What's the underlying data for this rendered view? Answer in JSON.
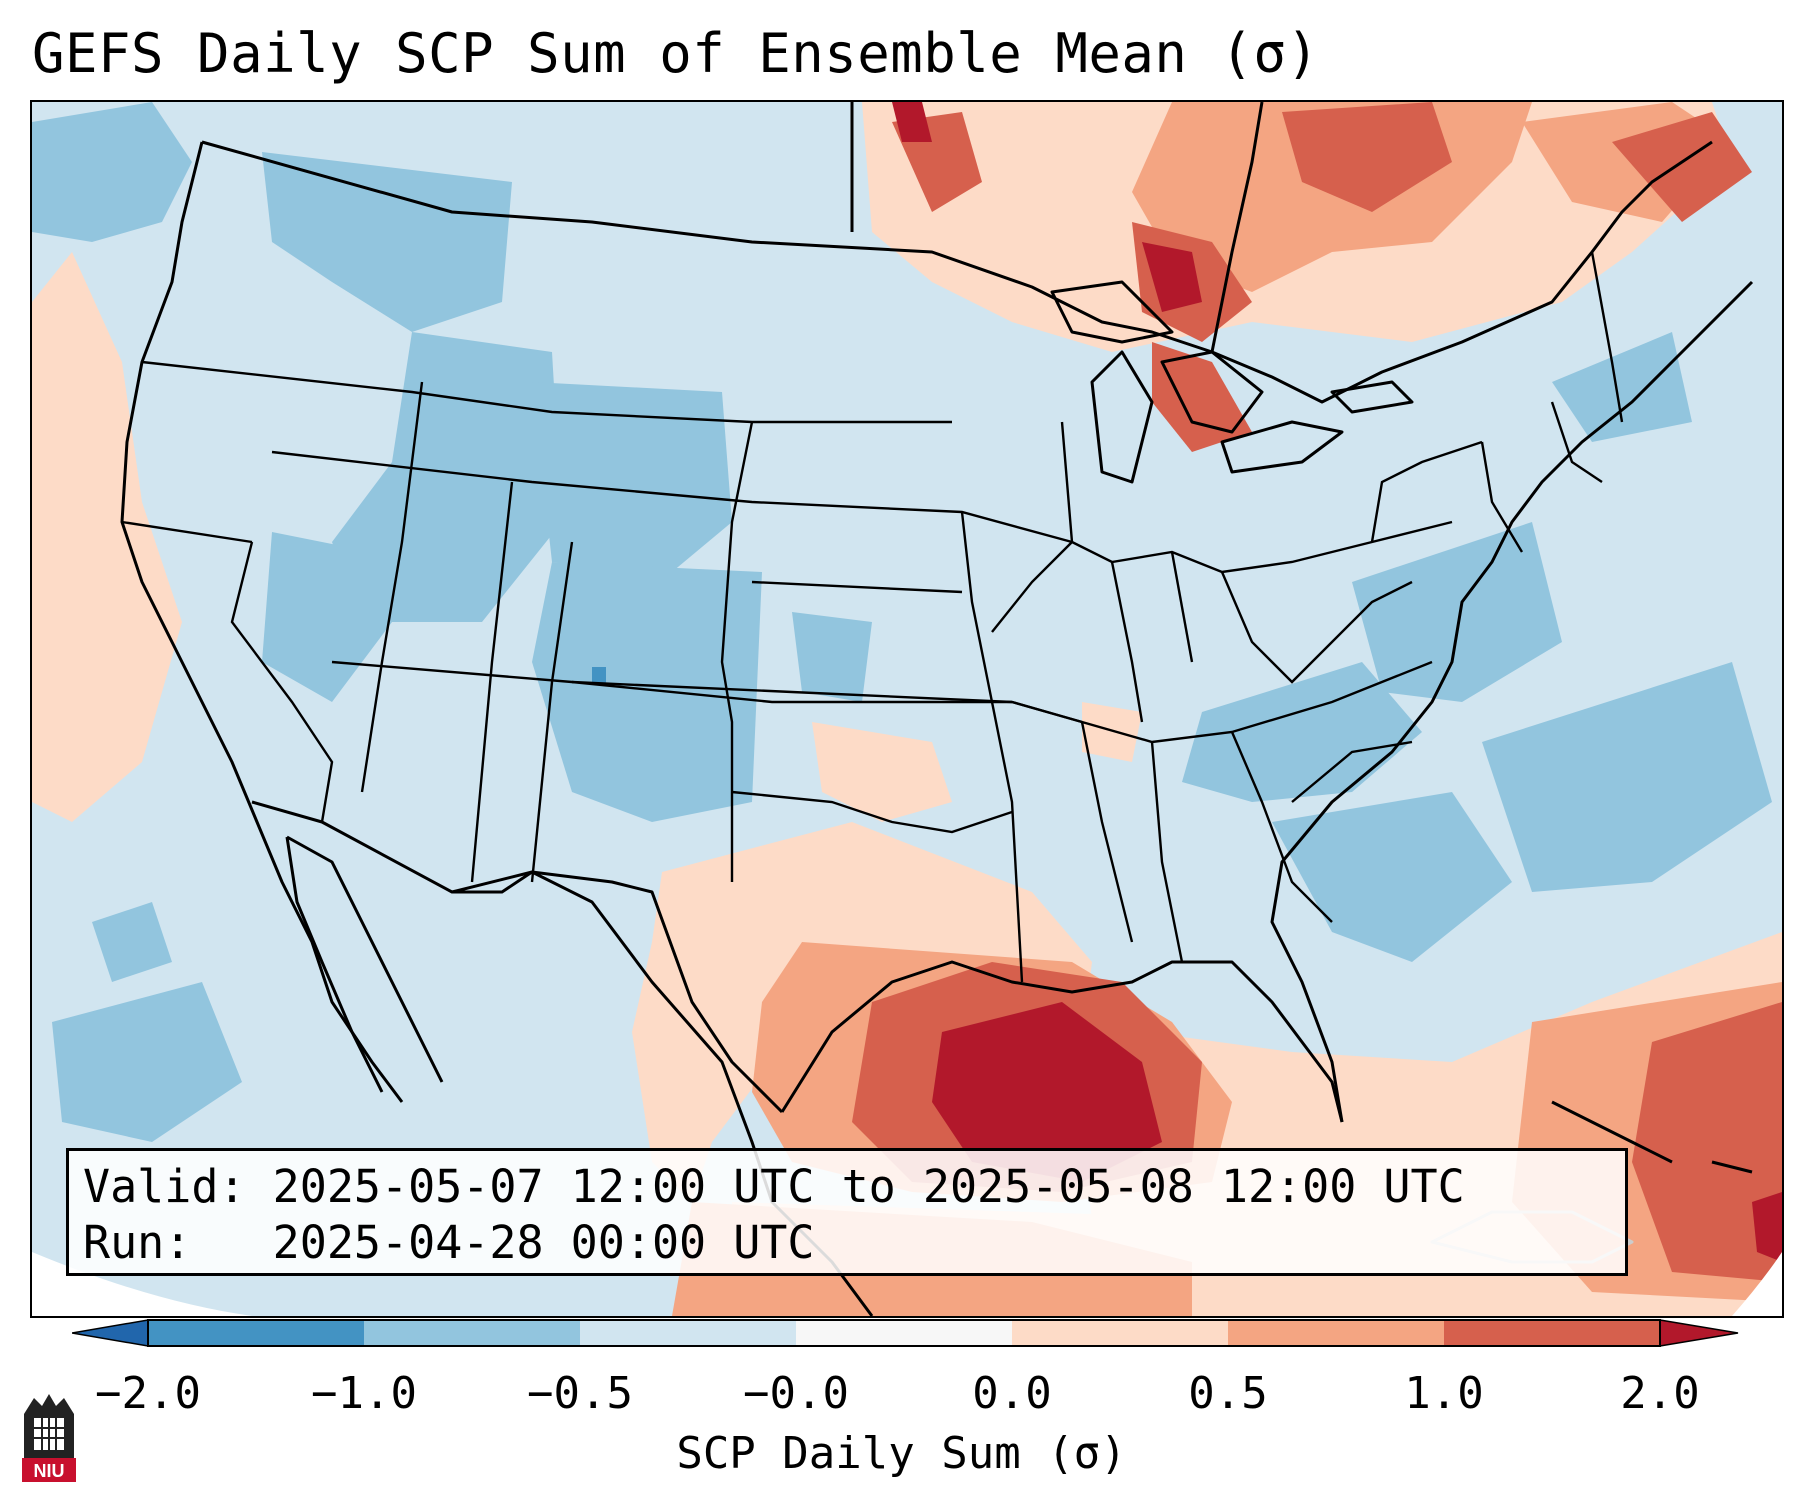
{
  "title": "GEFS Daily SCP Sum of Ensemble Mean (σ)",
  "info": {
    "valid": "Valid: 2025-05-07 12:00 UTC to 2025-05-08 12:00 UTC",
    "run": "Run:   2025-04-28 00:00 UTC"
  },
  "colorbar": {
    "label": "SCP Daily Sum (σ)",
    "ticks": [
      "−2.0",
      "−1.0",
      "−0.5",
      "−0.0",
      "0.0",
      "0.5",
      "1.0",
      "2.0"
    ],
    "colors": [
      "#2166ac",
      "#4393c3",
      "#92c5de",
      "#d1e5f0",
      "#f7f7f7",
      "#fddbc7",
      "#f4a582",
      "#d6604d",
      "#b2182b"
    ]
  },
  "logo": {
    "text": "NIU"
  }
}
